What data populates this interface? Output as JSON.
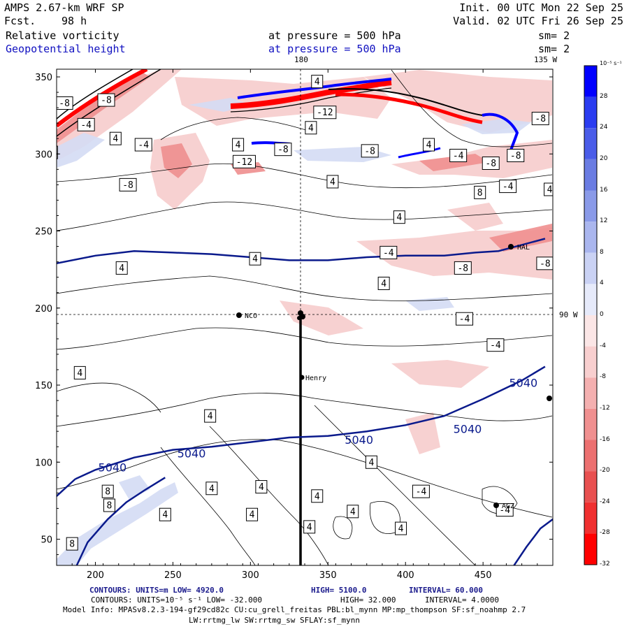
{
  "header": {
    "model": "AMPS 2.67-km WRF SP",
    "fcst_label": "Fcst.",
    "fcst_value": "98 h",
    "init": "Init. 00 UTC Mon 22 Sep 25",
    "valid": "Valid. 02 UTC Fri 26 Sep 25",
    "field1": "Relative vorticity",
    "field1_level": "at pressure =  500 hPa",
    "field1_sm": "sm= 2",
    "field2": "Geopotential height",
    "field2_level": "at pressure =  500 hPa",
    "field2_sm": "sm= 2"
  },
  "map_labels": {
    "lon_180": "180",
    "lon_135w": "135 W",
    "lon_90w": "90 W",
    "station_nco": "NCO",
    "station_henry": "Henry",
    "station_hal": "HAL",
    "station_agz": "AGZ"
  },
  "colors": {
    "height_contour": "#0a1a8c",
    "positive_max": "#0000ff",
    "negative_max": "#ff0000"
  },
  "colorbar": {
    "unit": "10⁻⁵ s⁻¹",
    "labels": [
      "32",
      "28",
      "24",
      "20",
      "16",
      "12",
      "8",
      "4",
      "0",
      "-4",
      "-8",
      "-12",
      "-16",
      "-20",
      "-24",
      "-28",
      "-32"
    ]
  },
  "footer": {
    "line1_a": "CONTOURS:  UNITS=m  LOW=  4920.0",
    "line1_b": "HIGH=  5100.0",
    "line1_c": "INTERVAL=   60.000",
    "line2_a": "CONTOURS:  UNITS=10⁻⁵ s⁻¹  LOW= -32.000",
    "line2_b": "HIGH=  32.000",
    "line2_c": "INTERVAL=   4.0000",
    "line3": "Model Info: MPASv8.2.3-194-gf29cd82c CU:cu_grell_freitas PBL:bl_mynn MP:mp_thompson SF:sf_noahmp 2.7",
    "line4": "LW:rrtmg_lw SW:rrtmg_sw SFLAY:sf_mynn"
  },
  "chart_data": {
    "type": "contour",
    "title": "Relative vorticity / Geopotential height at 500 hPa",
    "xlim": [
      175,
      495
    ],
    "ylim": [
      33,
      355
    ],
    "x_ticks": [
      200,
      250,
      300,
      350,
      400,
      450
    ],
    "y_ticks": [
      50,
      100,
      150,
      200,
      250,
      300,
      350
    ],
    "height_contours": [
      {
        "label": "5040",
        "points": [
          [
            175,
            229
          ],
          [
            200,
            234
          ],
          [
            225,
            237
          ],
          [
            250,
            236
          ],
          [
            275,
            235
          ],
          [
            300,
            233
          ],
          [
            325,
            231
          ],
          [
            350,
            231
          ],
          [
            375,
            233
          ],
          [
            400,
            234
          ],
          [
            425,
            234
          ],
          [
            445,
            236
          ],
          [
            460,
            237
          ],
          [
            475,
            241
          ],
          [
            490,
            245
          ]
        ]
      },
      {
        "label": "5040",
        "points": [
          [
            187,
            89
          ],
          [
            200,
            95
          ],
          [
            225,
            103
          ],
          [
            250,
            108
          ],
          [
            275,
            110
          ],
          [
            300,
            113
          ],
          [
            325,
            116
          ],
          [
            350,
            117
          ],
          [
            375,
            120
          ],
          [
            400,
            124
          ],
          [
            425,
            130
          ],
          [
            450,
            141
          ],
          [
            475,
            153
          ],
          [
            490,
            162
          ]
        ]
      },
      {
        "label": "5040",
        "points": [
          [
            187,
            89
          ],
          [
            175,
            78
          ],
          [
            160,
            70
          ]
        ]
      },
      {
        "label": "",
        "points": [
          [
            188,
            33
          ],
          [
            195,
            48
          ],
          [
            208,
            63
          ],
          [
            220,
            74
          ],
          [
            232,
            82
          ],
          [
            245,
            90
          ]
        ]
      },
      {
        "label": "",
        "points": [
          [
            470,
            33
          ],
          [
            478,
            45
          ],
          [
            487,
            57
          ],
          [
            495,
            63
          ]
        ]
      }
    ],
    "height_labels": [
      {
        "x": 262,
        "y": 105,
        "text": "5040"
      },
      {
        "x": 211,
        "y": 96,
        "text": "5040"
      },
      {
        "x": 370,
        "y": 114,
        "text": "5040"
      },
      {
        "x": 440,
        "y": 121,
        "text": "5040"
      },
      {
        "x": 476,
        "y": 151,
        "text": "5040"
      }
    ],
    "vorticity_labels": [
      {
        "x": 180,
        "y": 333,
        "v": -8
      },
      {
        "x": 207,
        "y": 335,
        "v": -8
      },
      {
        "x": 194,
        "y": 319,
        "v": -4
      },
      {
        "x": 213,
        "y": 310,
        "v": 4
      },
      {
        "x": 172,
        "y": 301,
        "v": 8
      },
      {
        "x": 231,
        "y": 306,
        "v": -4
      },
      {
        "x": 221,
        "y": 280,
        "v": -8
      },
      {
        "x": 296,
        "y": 295,
        "v": -12
      },
      {
        "x": 292,
        "y": 306,
        "v": 4
      },
      {
        "x": 321,
        "y": 303,
        "v": -8
      },
      {
        "x": 339,
        "y": 317,
        "v": 4
      },
      {
        "x": 343,
        "y": 347,
        "v": 4
      },
      {
        "x": 348,
        "y": 327,
        "v": -12
      },
      {
        "x": 353,
        "y": 282,
        "v": 4
      },
      {
        "x": 377,
        "y": 302,
        "v": -8
      },
      {
        "x": 415,
        "y": 306,
        "v": 4
      },
      {
        "x": 434,
        "y": 299,
        "v": -4
      },
      {
        "x": 455,
        "y": 294,
        "v": -8
      },
      {
        "x": 471,
        "y": 299,
        "v": -8
      },
      {
        "x": 466,
        "y": 279,
        "v": -4
      },
      {
        "x": 487,
        "y": 323,
        "v": -8
      },
      {
        "x": 448,
        "y": 275,
        "v": 8
      },
      {
        "x": 493,
        "y": 277,
        "v": 4
      },
      {
        "x": 396,
        "y": 259,
        "v": 4
      },
      {
        "x": 389,
        "y": 236,
        "v": -4
      },
      {
        "x": 437,
        "y": 226,
        "v": -8
      },
      {
        "x": 490,
        "y": 229,
        "v": -8
      },
      {
        "x": 303,
        "y": 232,
        "v": 4
      },
      {
        "x": 217,
        "y": 226,
        "v": 4
      },
      {
        "x": 386,
        "y": 216,
        "v": 4
      },
      {
        "x": 438,
        "y": 193,
        "v": -4
      },
      {
        "x": 458,
        "y": 176,
        "v": -4
      },
      {
        "x": 190,
        "y": 158,
        "v": 4
      },
      {
        "x": 274,
        "y": 130,
        "v": 4
      },
      {
        "x": 208,
        "y": 81,
        "v": 8
      },
      {
        "x": 209,
        "y": 72,
        "v": 8
      },
      {
        "x": 185,
        "y": 47,
        "v": 8
      },
      {
        "x": 275,
        "y": 83,
        "v": 4
      },
      {
        "x": 307,
        "y": 84,
        "v": 4
      },
      {
        "x": 343,
        "y": 78,
        "v": 4
      },
      {
        "x": 378,
        "y": 100,
        "v": 4
      },
      {
        "x": 366,
        "y": 68,
        "v": 4
      },
      {
        "x": 301,
        "y": 66,
        "v": 4
      },
      {
        "x": 245,
        "y": 66,
        "v": 4
      },
      {
        "x": 338,
        "y": 58,
        "v": 4
      },
      {
        "x": 410,
        "y": 81,
        "v": -4
      },
      {
        "x": 464,
        "y": 69,
        "v": -4
      },
      {
        "x": 397,
        "y": 57,
        "v": 4
      }
    ],
    "stations": [
      {
        "name": "NCO",
        "x": 294,
        "y": 195
      },
      {
        "name": "Henry",
        "x": 334,
        "y": 155
      },
      {
        "name": "HAL",
        "x": 468,
        "y": 239
      },
      {
        "name": "AGZ",
        "x": 460,
        "y": 73
      }
    ],
    "colorbar_range": [
      -32,
      32
    ],
    "colorbar_interval": 4
  }
}
